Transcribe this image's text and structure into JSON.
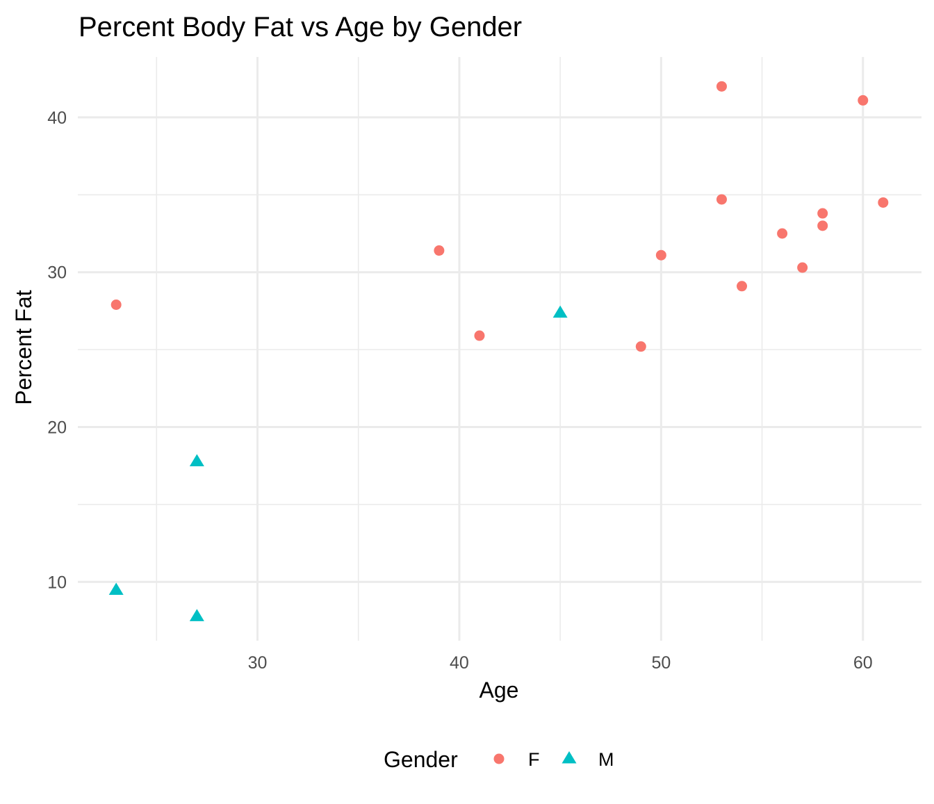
{
  "chart_data": {
    "type": "scatter",
    "title": "Percent Body Fat vs Age by Gender",
    "xlabel": "Age",
    "ylabel": "Percent Fat",
    "xlim": [
      21.1,
      62.9
    ],
    "ylim": [
      6.2,
      43.9
    ],
    "x_ticks": [
      30,
      40,
      50,
      60
    ],
    "x_minor_ticks": [
      25,
      35,
      45,
      55
    ],
    "y_ticks": [
      10,
      20,
      30,
      40
    ],
    "y_minor_ticks": [
      15,
      25,
      35
    ],
    "grid": true,
    "legend": {
      "title": "Gender",
      "position": "bottom"
    },
    "series": [
      {
        "name": "F",
        "shape": "circle",
        "color": "#F8766D",
        "points": [
          {
            "x": 23,
            "y": 27.9
          },
          {
            "x": 39,
            "y": 31.4
          },
          {
            "x": 41,
            "y": 25.9
          },
          {
            "x": 49,
            "y": 25.2
          },
          {
            "x": 50,
            "y": 31.1
          },
          {
            "x": 53,
            "y": 42.0
          },
          {
            "x": 53,
            "y": 34.7
          },
          {
            "x": 54,
            "y": 29.1
          },
          {
            "x": 56,
            "y": 32.5
          },
          {
            "x": 57,
            "y": 30.3
          },
          {
            "x": 58,
            "y": 33.8
          },
          {
            "x": 58,
            "y": 33.0
          },
          {
            "x": 60,
            "y": 41.1
          },
          {
            "x": 61,
            "y": 34.5
          }
        ]
      },
      {
        "name": "M",
        "shape": "triangle",
        "color": "#00BFC4",
        "points": [
          {
            "x": 23,
            "y": 9.5
          },
          {
            "x": 27,
            "y": 7.8
          },
          {
            "x": 27,
            "y": 17.8
          },
          {
            "x": 45,
            "y": 27.4
          }
        ]
      }
    ]
  }
}
